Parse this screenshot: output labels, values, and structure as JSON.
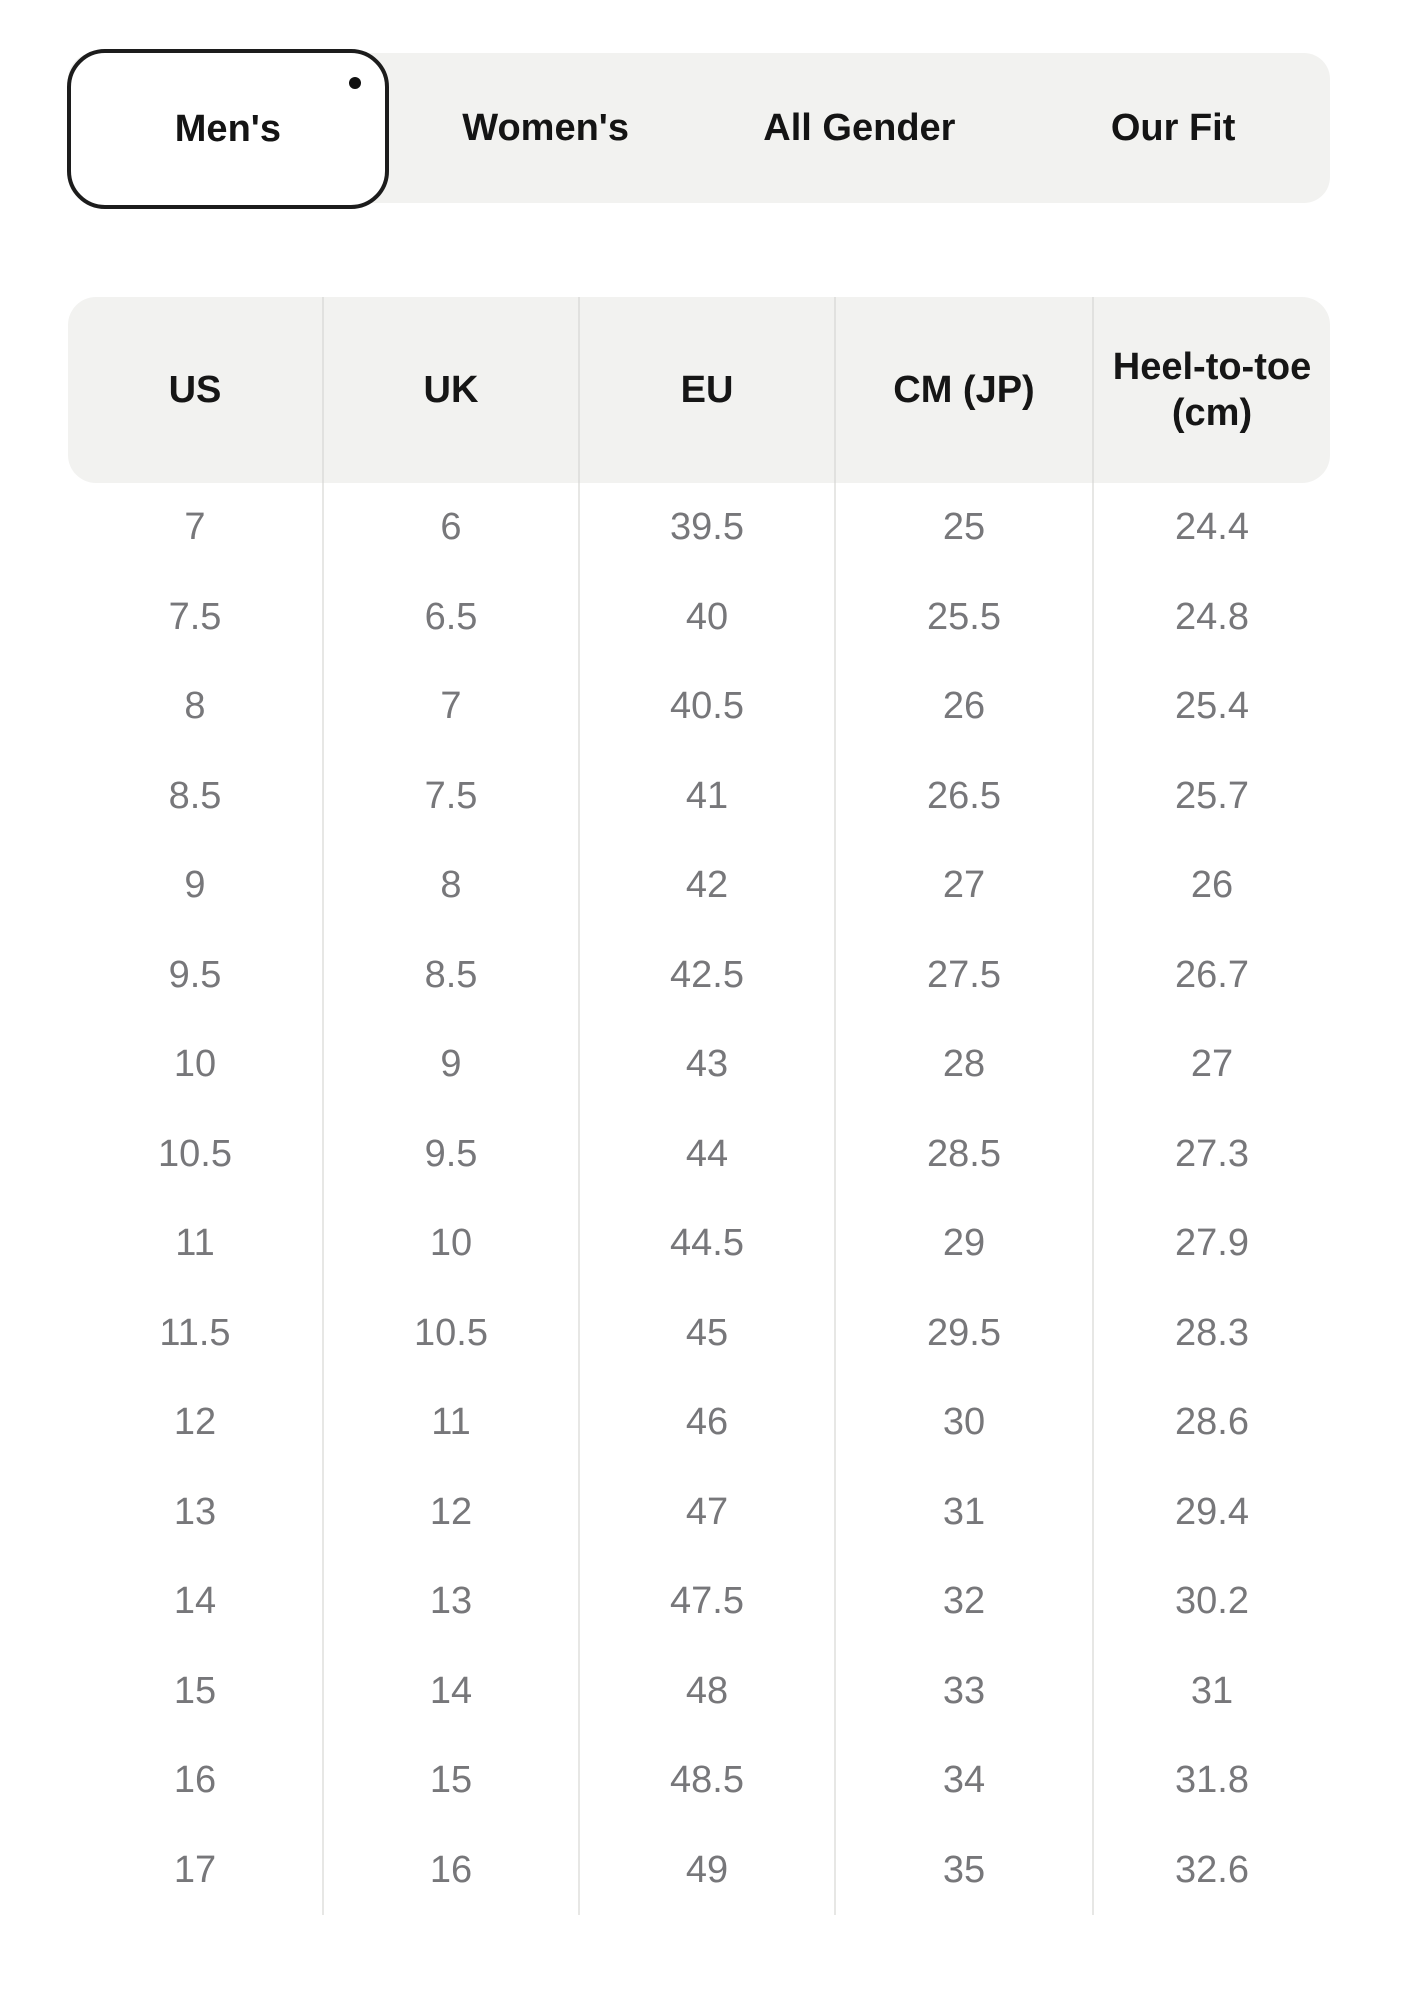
{
  "tabs": [
    {
      "label": "Men's",
      "selected": true
    },
    {
      "label": "Women's",
      "selected": false
    },
    {
      "label": "All Gender",
      "selected": false
    },
    {
      "label": "Our Fit",
      "selected": false
    }
  ],
  "table": {
    "columns": [
      "US",
      "UK",
      "EU",
      "CM (JP)",
      "Heel-to-toe (cm)"
    ],
    "rows": [
      [
        "7",
        "6",
        "39.5",
        "25",
        "24.4"
      ],
      [
        "7.5",
        "6.5",
        "40",
        "25.5",
        "24.8"
      ],
      [
        "8",
        "7",
        "40.5",
        "26",
        "25.4"
      ],
      [
        "8.5",
        "7.5",
        "41",
        "26.5",
        "25.7"
      ],
      [
        "9",
        "8",
        "42",
        "27",
        "26"
      ],
      [
        "9.5",
        "8.5",
        "42.5",
        "27.5",
        "26.7"
      ],
      [
        "10",
        "9",
        "43",
        "28",
        "27"
      ],
      [
        "10.5",
        "9.5",
        "44",
        "28.5",
        "27.3"
      ],
      [
        "11",
        "10",
        "44.5",
        "29",
        "27.9"
      ],
      [
        "11.5",
        "10.5",
        "45",
        "29.5",
        "28.3"
      ],
      [
        "12",
        "11",
        "46",
        "30",
        "28.6"
      ],
      [
        "13",
        "12",
        "47",
        "31",
        "29.4"
      ],
      [
        "14",
        "13",
        "47.5",
        "32",
        "30.2"
      ],
      [
        "15",
        "14",
        "48",
        "33",
        "31"
      ],
      [
        "16",
        "15",
        "48.5",
        "34",
        "31.8"
      ],
      [
        "17",
        "16",
        "49",
        "35",
        "32.6"
      ]
    ]
  },
  "colors": {
    "panel_background": "#f2f2f0",
    "active_tab_background": "#ffffff",
    "active_tab_border": "#1c1c1c",
    "divider": "#e5e5e3",
    "data_text": "#77777a",
    "heading_text": "#161616"
  }
}
